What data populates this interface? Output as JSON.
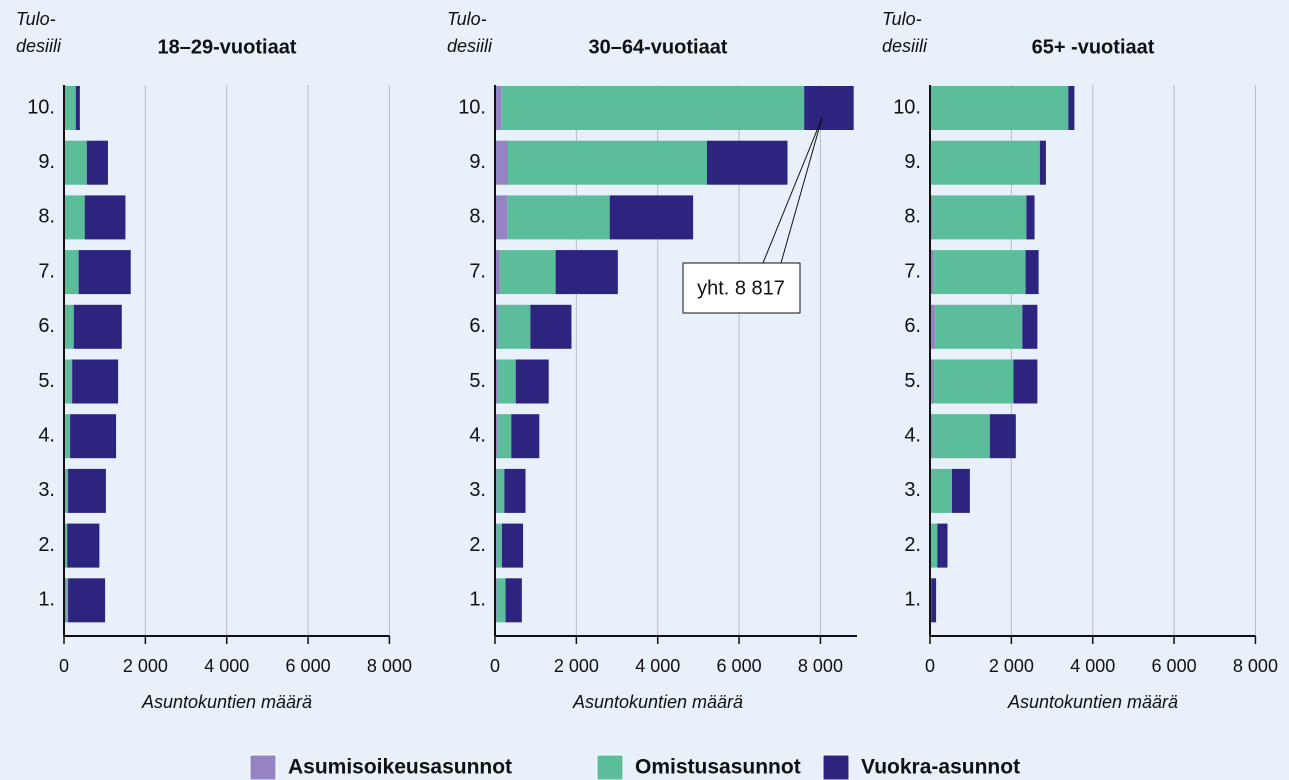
{
  "chart_data": [
    {
      "type": "bar",
      "orientation": "horizontal",
      "stacked": true,
      "title": "18–29-vuotiaat",
      "y_label_lines": [
        "Tulo-",
        "desiili"
      ],
      "x_label": "Asuntokuntien määrä",
      "categories": [
        "10.",
        "9.",
        "8.",
        "7.",
        "6.",
        "5.",
        "4.",
        "3.",
        "2.",
        "1."
      ],
      "series": [
        {
          "values": [
            20,
            20,
            20,
            20,
            20,
            30,
            30,
            40,
            40,
            60
          ]
        },
        {
          "values": [
            270,
            540,
            490,
            340,
            220,
            170,
            120,
            60,
            40,
            40
          ]
        },
        {
          "values": [
            100,
            520,
            1000,
            1280,
            1180,
            1130,
            1130,
            930,
            790,
            910
          ]
        }
      ],
      "xlim": [
        0,
        8000
      ],
      "xticks": [
        0,
        {
          "value": 2000,
          "label": "2 000"
        },
        {
          "value": 4000,
          "label": "4 000"
        },
        {
          "value": 6000,
          "label": "6 000"
        },
        {
          "value": 8000,
          "label": "8 000"
        }
      ],
      "grid": true
    },
    {
      "type": "bar",
      "orientation": "horizontal",
      "stacked": true,
      "title": "30–64-vuotiaat",
      "y_label_lines": [
        "Tulo-",
        "desiili"
      ],
      "x_label": "Asuntokuntien määrä",
      "categories": [
        "10.",
        "9.",
        "8.",
        "7.",
        "6.",
        "5.",
        "4.",
        "3.",
        "2.",
        "1."
      ],
      "series": [
        {
          "values": [
            150,
            320,
            300,
            130,
            80,
            60,
            50,
            40,
            40,
            40
          ]
        },
        {
          "values": [
            7450,
            4890,
            2520,
            1360,
            790,
            450,
            350,
            190,
            130,
            220
          ]
        },
        {
          "values": [
            1217,
            1980,
            2050,
            1530,
            1010,
            810,
            690,
            520,
            520,
            400
          ]
        }
      ],
      "xlim": [
        0,
        8900
      ],
      "xticks": [
        0,
        {
          "value": 2000,
          "label": "2 000"
        },
        {
          "value": 4000,
          "label": "4 000"
        },
        {
          "value": 6000,
          "label": "6 000"
        },
        {
          "value": 8000,
          "label": "8 000"
        }
      ],
      "grid": true,
      "annotation": "yht. 8 817"
    },
    {
      "type": "bar",
      "orientation": "horizontal",
      "stacked": true,
      "title": "65+ -vuotiaat",
      "y_label_lines": [
        "Tulo-",
        "desiili"
      ],
      "x_label": "Asuntokuntien määrä",
      "categories": [
        "10.",
        "9.",
        "8.",
        "7.",
        "6.",
        "5.",
        "4.",
        "3.",
        "2.",
        "1."
      ],
      "series": [
        {
          "values": [
            10,
            30,
            60,
            90,
            130,
            100,
            60,
            20,
            10,
            10
          ]
        },
        {
          "values": [
            3390,
            2670,
            2310,
            2260,
            2140,
            1950,
            1410,
            520,
            170,
            20
          ]
        },
        {
          "values": [
            150,
            150,
            200,
            320,
            370,
            590,
            640,
            440,
            250,
            120
          ]
        }
      ],
      "xlim": [
        0,
        8000
      ],
      "xticks": [
        0,
        {
          "value": 2000,
          "label": "2 000"
        },
        {
          "value": 4000,
          "label": "4 000"
        },
        {
          "value": 6000,
          "label": "6 000"
        },
        {
          "value": 8000,
          "label": "8 000"
        }
      ],
      "grid": true
    }
  ],
  "legend": [
    {
      "name": "Asumisoikeusasunnot",
      "color": "#9484c4"
    },
    {
      "name": "Omistusasunnot",
      "color": "#5bbd99"
    },
    {
      "name": "Vuokra-asunnot",
      "color": "#2d2480"
    }
  ]
}
